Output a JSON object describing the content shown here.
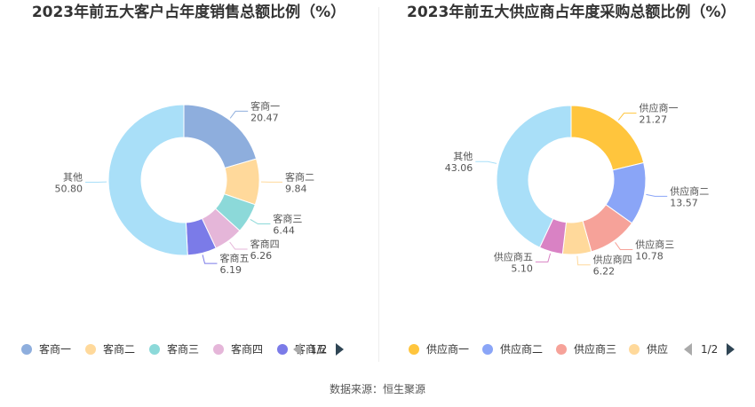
{
  "source": "数据来源：恒生聚源",
  "legend_page": "1/2",
  "chart_data": [
    {
      "type": "pie",
      "title": "2023年前五大客户占年度销售总额比例（%）",
      "categories": [
        "客商一",
        "客商二",
        "客商三",
        "客商四",
        "客商五",
        "其他"
      ],
      "values": [
        20.47,
        9.84,
        6.44,
        6.26,
        6.19,
        50.8
      ],
      "labels": [
        "20.47",
        "9.84",
        "6.44",
        "6.26",
        "6.19",
        "50.80"
      ],
      "colors": [
        "#8eaedd",
        "#ffd99b",
        "#8cd9d9",
        "#e5b6d9",
        "#7b7be8",
        "#a9dff8"
      ],
      "legend_visible": [
        "客商一",
        "客商二",
        "客商三",
        "客商四",
        "客商五"
      ],
      "legend_placement": "bottom"
    },
    {
      "type": "pie",
      "title": "2023年前五大供应商占年度采购总额比例（%）",
      "categories": [
        "供应商一",
        "供应商二",
        "供应商三",
        "供应商四",
        "供应商五",
        "其他"
      ],
      "values": [
        21.27,
        13.57,
        10.78,
        6.22,
        5.1,
        43.06
      ],
      "labels": [
        "21.27",
        "13.57",
        "10.78",
        "6.22",
        "5.10",
        "43.06"
      ],
      "colors": [
        "#ffc53d",
        "#8aa5f7",
        "#f6a299",
        "#ffd99b",
        "#d982c4",
        "#a9dff8"
      ],
      "legend_visible": [
        "供应商一",
        "供应商二",
        "供应商三",
        "供应"
      ],
      "legend_placement": "bottom"
    }
  ]
}
